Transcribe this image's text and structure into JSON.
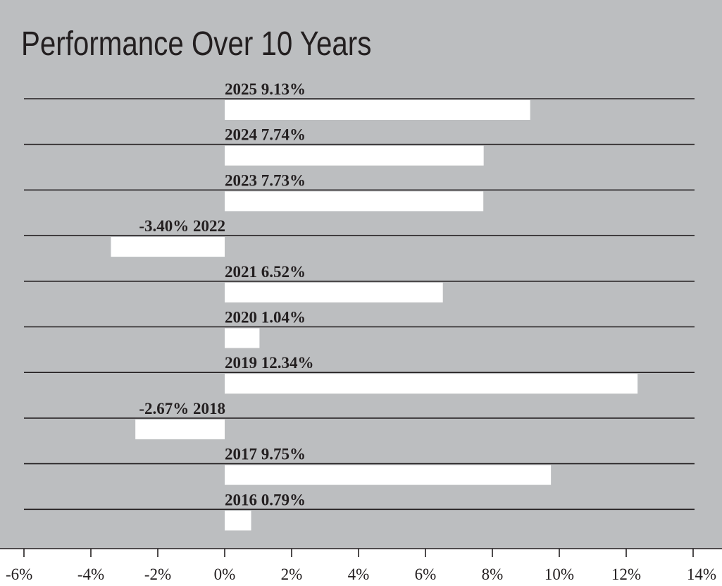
{
  "chart_data": {
    "type": "bar",
    "orientation": "horizontal",
    "title": "Performance Over 10 Years",
    "categories": [
      "2025",
      "2024",
      "2023",
      "2022",
      "2021",
      "2020",
      "2019",
      "2018",
      "2017",
      "2016"
    ],
    "values": [
      9.13,
      7.74,
      7.73,
      -3.4,
      6.52,
      1.04,
      12.34,
      -2.67,
      9.75,
      0.79
    ],
    "data_labels": [
      "2025 9.13%",
      "2024 7.74%",
      "2023 7.73%",
      "-3.40% 2022",
      "2021 6.52%",
      "2020 1.04%",
      "2019 12.34%",
      "-2.67% 2018",
      "2017 9.75%",
      "2016 0.79%"
    ],
    "xlim": [
      -6,
      14
    ],
    "x_ticks": [
      -6,
      -4,
      -2,
      0,
      2,
      4,
      6,
      8,
      10,
      12,
      14
    ],
    "x_tick_labels": [
      "-6%",
      "-4%",
      "-2%",
      "0%",
      "2%",
      "4%",
      "6%",
      "8%",
      "10%",
      "12%",
      "14%"
    ],
    "xlabel": "",
    "ylabel": "",
    "grid": true,
    "legend": "none",
    "colors": {
      "plot_background": "#bcbec0",
      "bar": "#ffffff",
      "rule": "#231f20",
      "text": "#231f20",
      "axis_strip": "#ffffff"
    }
  }
}
